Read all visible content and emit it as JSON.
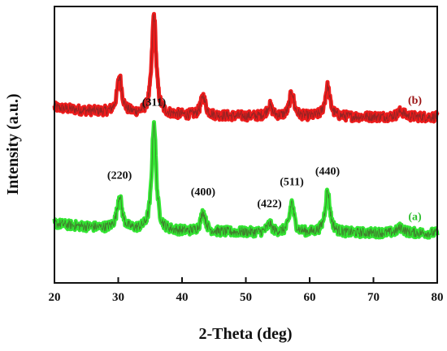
{
  "chart_data": {
    "type": "line",
    "xlabel": "2-Theta (deg)",
    "ylabel": "Intensity (a.u.)",
    "xlim": [
      20,
      80
    ],
    "xticks": [
      20,
      30,
      40,
      50,
      60,
      70,
      80
    ],
    "yticks_shown": false,
    "grid": false,
    "legend": "none",
    "series": [
      {
        "name": "(b)",
        "color": "#ee1c1c",
        "baseline": 0.6,
        "peaks": [
          {
            "x": 30.2,
            "height": 0.13,
            "width": 0.45
          },
          {
            "x": 35.6,
            "height": 0.36,
            "width": 0.4
          },
          {
            "x": 43.3,
            "height": 0.07,
            "width": 0.45
          },
          {
            "x": 53.7,
            "height": 0.04,
            "width": 0.45
          },
          {
            "x": 57.2,
            "height": 0.09,
            "width": 0.4
          },
          {
            "x": 62.8,
            "height": 0.11,
            "width": 0.45
          },
          {
            "x": 74.3,
            "height": 0.02,
            "width": 0.6
          }
        ]
      },
      {
        "name": "(a)",
        "color": "#33e633",
        "baseline": 0.18,
        "peaks": [
          {
            "x": 30.2,
            "height": 0.12,
            "width": 0.45
          },
          {
            "x": 35.6,
            "height": 0.39,
            "width": 0.4
          },
          {
            "x": 43.3,
            "height": 0.07,
            "width": 0.45
          },
          {
            "x": 53.7,
            "height": 0.03,
            "width": 0.45
          },
          {
            "x": 57.2,
            "height": 0.11,
            "width": 0.4
          },
          {
            "x": 62.8,
            "height": 0.15,
            "width": 0.45
          },
          {
            "x": 74.3,
            "height": 0.02,
            "width": 0.6
          }
        ]
      }
    ],
    "annotations": [
      {
        "text": "(220)",
        "x": 30.2
      },
      {
        "text": "(311)",
        "x": 35.6
      },
      {
        "text": "(400)",
        "x": 43.3
      },
      {
        "text": "(422)",
        "x": 53.7
      },
      {
        "text": "(511)",
        "x": 57.2
      },
      {
        "text": "(440)",
        "x": 62.8
      }
    ]
  }
}
